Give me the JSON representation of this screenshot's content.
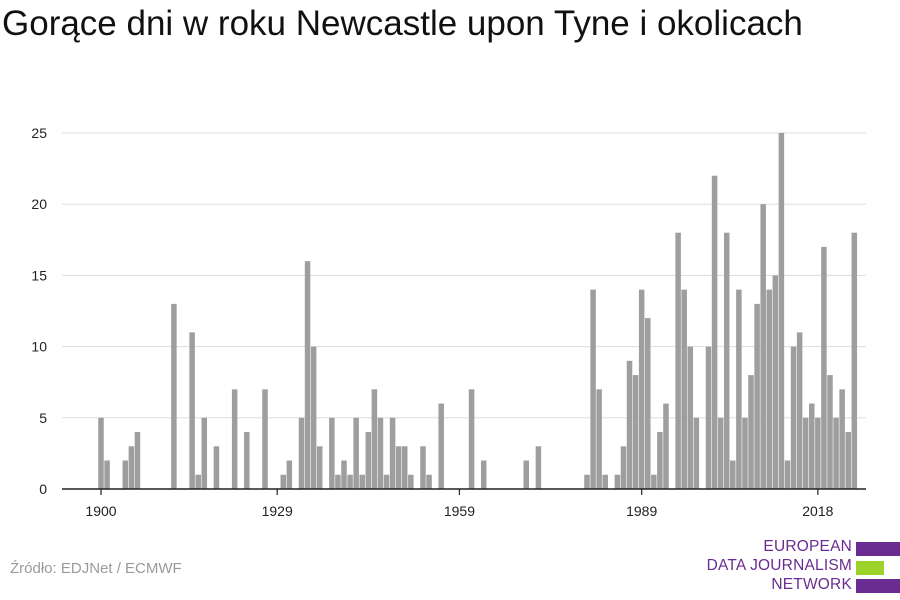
{
  "title": "Gorące dni w roku Newcastle upon Tyne i okolicach",
  "source": "Źródło: EDJNet / ECMWF",
  "logo": {
    "lines": [
      "EUROPEAN",
      "DATA JOURNALISM",
      "NETWORK"
    ],
    "colors": {
      "purple": "#6a2c91",
      "green": "#9bd32a"
    }
  },
  "colors": {
    "bar": "#9e9e9e",
    "grid": "#dddddd",
    "axis": "#222222",
    "text": "#222222"
  },
  "chart_data": {
    "type": "bar",
    "x_tick_labels": [
      "1900",
      "1929",
      "1959",
      "1989",
      "2018"
    ],
    "y_tick_labels": [
      "0",
      "5",
      "10",
      "15",
      "20",
      "25"
    ],
    "ylim": [
      0,
      25
    ],
    "grid": true,
    "x_start": 1900,
    "values": [
      5,
      2,
      0,
      0,
      2,
      3,
      4,
      0,
      0,
      0,
      0,
      0,
      13,
      0,
      0,
      11,
      1,
      5,
      0,
      3,
      0,
      0,
      7,
      0,
      4,
      0,
      0,
      7,
      0,
      0,
      1,
      2,
      0,
      5,
      16,
      10,
      3,
      0,
      5,
      1,
      2,
      1,
      5,
      1,
      4,
      7,
      5,
      1,
      5,
      3,
      3,
      1,
      0,
      3,
      1,
      0,
      6,
      0,
      0,
      0,
      0,
      7,
      0,
      2,
      0,
      0,
      0,
      0,
      0,
      0,
      2,
      0,
      3,
      0,
      0,
      0,
      0,
      0,
      0,
      0,
      1,
      14,
      7,
      1,
      0,
      1,
      3,
      9,
      8,
      14,
      12,
      1,
      4,
      6,
      0,
      18,
      14,
      10,
      5,
      0,
      10,
      22,
      5,
      18,
      2,
      14,
      5,
      8,
      13,
      20,
      14,
      15,
      25,
      2,
      10,
      11,
      5,
      6,
      5,
      17,
      8,
      5,
      7,
      4,
      18
    ]
  }
}
